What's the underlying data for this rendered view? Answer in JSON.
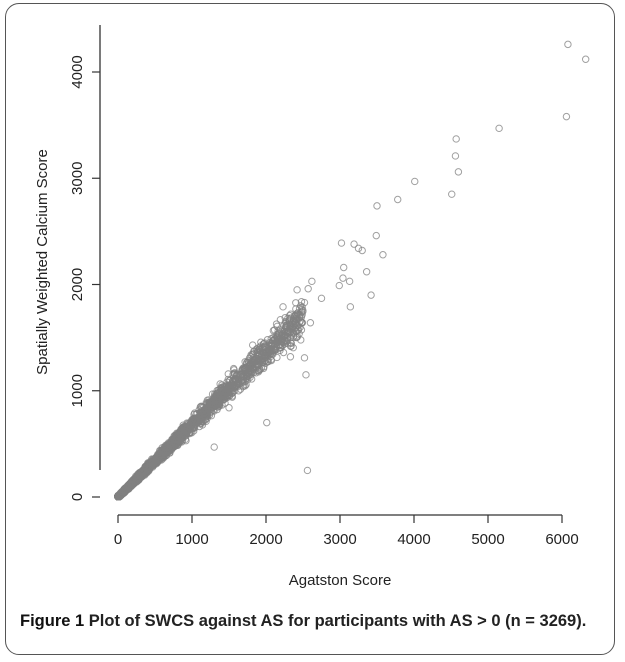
{
  "figure_label": "Figure 1",
  "caption_text": " Plot of SWCS against AS for participants with AS > 0 (n = 3269).",
  "chart_data": {
    "type": "scatter",
    "xlabel": "Agatston Score",
    "ylabel": "Spatially Weighted Calcium Score",
    "xticks": [
      0,
      1000,
      2000,
      3000,
      4000,
      5000,
      6000
    ],
    "yticks": [
      0,
      1000,
      2000,
      3000,
      4000
    ],
    "xlim": [
      0,
      6400
    ],
    "ylim": [
      0,
      4300
    ],
    "grid": false,
    "marker": "open-circle",
    "color": "#808080",
    "n": 3269,
    "outliers": [
      {
        "x": 6080,
        "y": 4260
      },
      {
        "x": 6320,
        "y": 4120
      },
      {
        "x": 6060,
        "y": 3580
      },
      {
        "x": 5150,
        "y": 3470
      },
      {
        "x": 4570,
        "y": 3370
      },
      {
        "x": 4560,
        "y": 3210
      },
      {
        "x": 4600,
        "y": 3060
      },
      {
        "x": 4010,
        "y": 2970
      },
      {
        "x": 4510,
        "y": 2850
      },
      {
        "x": 3780,
        "y": 2800
      },
      {
        "x": 3500,
        "y": 2740
      },
      {
        "x": 3490,
        "y": 2460
      },
      {
        "x": 3580,
        "y": 2280
      },
      {
        "x": 3020,
        "y": 2390
      },
      {
        "x": 3190,
        "y": 2380
      },
      {
        "x": 3250,
        "y": 2340
      },
      {
        "x": 3300,
        "y": 2320
      },
      {
        "x": 3050,
        "y": 2160
      },
      {
        "x": 3360,
        "y": 2120
      },
      {
        "x": 3040,
        "y": 2060
      },
      {
        "x": 3130,
        "y": 2030
      },
      {
        "x": 2990,
        "y": 1990
      },
      {
        "x": 3420,
        "y": 1900
      },
      {
        "x": 3140,
        "y": 1790
      },
      {
        "x": 2620,
        "y": 2030
      },
      {
        "x": 2570,
        "y": 1960
      },
      {
        "x": 2420,
        "y": 1950
      },
      {
        "x": 2750,
        "y": 1870
      },
      {
        "x": 2520,
        "y": 1830
      },
      {
        "x": 2230,
        "y": 1790
      },
      {
        "x": 2600,
        "y": 1640
      },
      {
        "x": 2330,
        "y": 1320
      },
      {
        "x": 2020,
        "y": 1480
      },
      {
        "x": 2520,
        "y": 1310
      },
      {
        "x": 2540,
        "y": 1150
      },
      {
        "x": 2560,
        "y": 250
      },
      {
        "x": 2010,
        "y": 700
      },
      {
        "x": 1300,
        "y": 470
      },
      {
        "x": 1820,
        "y": 1430
      },
      {
        "x": 1790,
        "y": 1320
      },
      {
        "x": 1900,
        "y": 1290
      },
      {
        "x": 1630,
        "y": 1000
      },
      {
        "x": 1500,
        "y": 840
      },
      {
        "x": 1680,
        "y": 1190
      },
      {
        "x": 2080,
        "y": 1420
      },
      {
        "x": 2150,
        "y": 1530
      },
      {
        "x": 2280,
        "y": 1470
      }
    ],
    "main_trend": {
      "slope": 0.68,
      "x_max": 2500,
      "points": 3222
    }
  }
}
